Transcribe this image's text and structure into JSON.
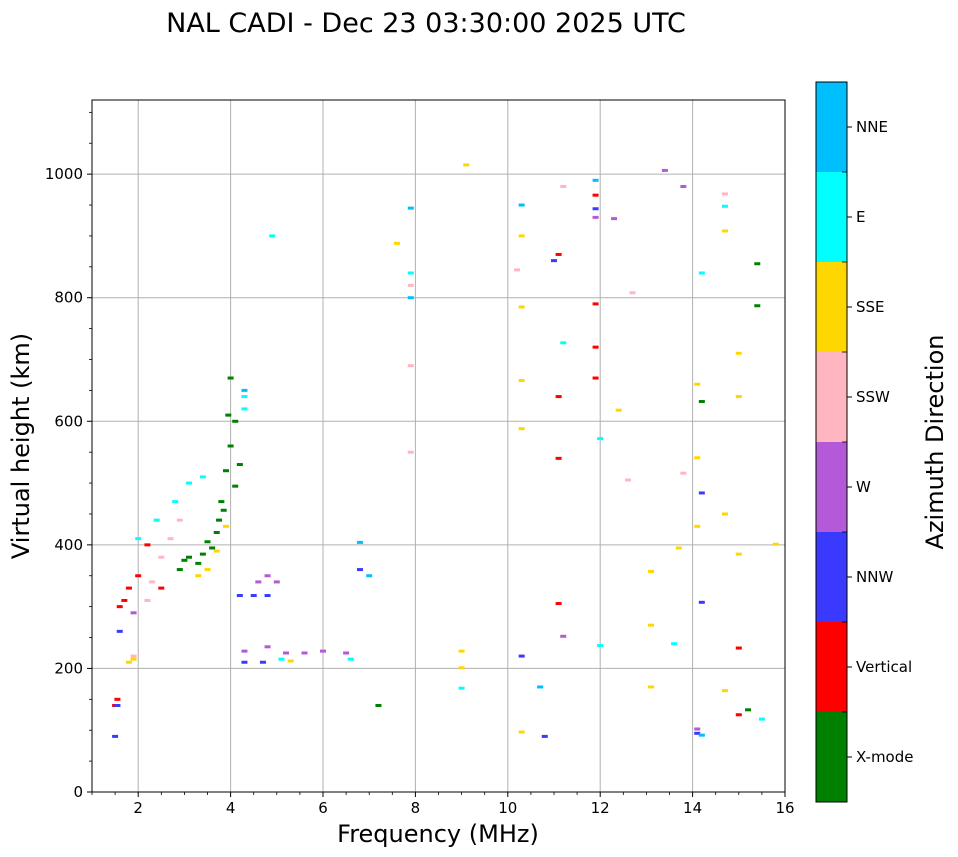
{
  "chart_data": {
    "type": "scatter",
    "title": "NAL CADI - Dec 23 03:30:00 2025 UTC",
    "xlabel": "Frequency (MHz)",
    "ylabel": "Virtual height (km)",
    "xlim": [
      1,
      16
    ],
    "ylim": [
      0,
      1120
    ],
    "xticks": [
      2,
      4,
      6,
      8,
      10,
      12,
      14,
      16
    ],
    "yticks": [
      0,
      200,
      400,
      600,
      800,
      1000
    ],
    "grid": true,
    "colorbar": {
      "label": "Azimuth Direction",
      "categories": [
        {
          "name": "X-mode",
          "color": "#008000"
        },
        {
          "name": "Vertical",
          "color": "#ff0000"
        },
        {
          "name": "NNW",
          "color": "#3a3aff"
        },
        {
          "name": "W",
          "color": "#b45ad8"
        },
        {
          "name": "SSW",
          "color": "#ffb6c1"
        },
        {
          "name": "SSE",
          "color": "#ffd700"
        },
        {
          "name": "E",
          "color": "#00ffff"
        },
        {
          "name": "NNE",
          "color": "#00bfff"
        }
      ]
    },
    "series": [
      {
        "name": "X-mode",
        "points": [
          [
            3.6,
            395
          ],
          [
            3.7,
            420
          ],
          [
            3.8,
            470
          ],
          [
            3.9,
            520
          ],
          [
            4.0,
            560
          ],
          [
            4.1,
            600
          ],
          [
            3.3,
            370
          ],
          [
            3.4,
            385
          ],
          [
            3.5,
            405
          ],
          [
            2.9,
            360
          ],
          [
            3.0,
            375
          ],
          [
            3.1,
            380
          ],
          [
            4.1,
            495
          ],
          [
            4.2,
            530
          ],
          [
            3.95,
            610
          ],
          [
            4.0,
            670
          ],
          [
            15.4,
            855
          ],
          [
            15.4,
            787
          ],
          [
            15.2,
            133
          ],
          [
            14.2,
            632
          ],
          [
            7.2,
            140
          ],
          [
            3.85,
            456
          ],
          [
            3.75,
            440
          ]
        ]
      },
      {
        "name": "Vertical",
        "points": [
          [
            1.5,
            140
          ],
          [
            1.6,
            300
          ],
          [
            1.7,
            310
          ],
          [
            1.8,
            330
          ],
          [
            2.0,
            350
          ],
          [
            2.2,
            400
          ],
          [
            2.5,
            330
          ],
          [
            11.1,
            870
          ],
          [
            11.1,
            640
          ],
          [
            11.1,
            540
          ],
          [
            11.1,
            305
          ],
          [
            11.9,
            966
          ],
          [
            11.9,
            790
          ],
          [
            11.9,
            720
          ],
          [
            11.9,
            670
          ],
          [
            15.0,
            233
          ],
          [
            15.0,
            125
          ],
          [
            1.55,
            150
          ]
        ]
      },
      {
        "name": "NNW",
        "points": [
          [
            1.6,
            260
          ],
          [
            1.5,
            90
          ],
          [
            4.2,
            318
          ],
          [
            4.5,
            318
          ],
          [
            4.8,
            318
          ],
          [
            4.3,
            210
          ],
          [
            4.7,
            210
          ],
          [
            6.8,
            360
          ],
          [
            11.0,
            860
          ],
          [
            11.9,
            944
          ],
          [
            14.2,
            307
          ],
          [
            14.2,
            484
          ],
          [
            14.1,
            95
          ],
          [
            10.8,
            90
          ],
          [
            10.3,
            220
          ],
          [
            1.55,
            140
          ]
        ]
      },
      {
        "name": "W",
        "points": [
          [
            4.6,
            340
          ],
          [
            4.8,
            350
          ],
          [
            5.0,
            340
          ],
          [
            4.3,
            228
          ],
          [
            4.8,
            235
          ],
          [
            5.2,
            225
          ],
          [
            5.6,
            225
          ],
          [
            6.0,
            228
          ],
          [
            6.5,
            225
          ],
          [
            11.9,
            930
          ],
          [
            14.1,
            102
          ],
          [
            12.3,
            928
          ],
          [
            13.4,
            1006
          ],
          [
            13.8,
            980
          ],
          [
            11.2,
            252
          ],
          [
            1.9,
            290
          ]
        ]
      },
      {
        "name": "SSW",
        "points": [
          [
            2.3,
            340
          ],
          [
            2.5,
            380
          ],
          [
            2.7,
            410
          ],
          [
            2.9,
            440
          ],
          [
            2.2,
            310
          ],
          [
            1.9,
            220
          ],
          [
            7.9,
            820
          ],
          [
            7.9,
            690
          ],
          [
            7.9,
            550
          ],
          [
            10.2,
            845
          ],
          [
            11.2,
            980
          ],
          [
            14.7,
            968
          ],
          [
            13.8,
            516
          ],
          [
            12.6,
            505
          ],
          [
            12.7,
            808
          ]
        ]
      },
      {
        "name": "SSE",
        "points": [
          [
            3.5,
            360
          ],
          [
            3.7,
            390
          ],
          [
            3.9,
            430
          ],
          [
            3.3,
            350
          ],
          [
            1.8,
            210
          ],
          [
            1.9,
            215
          ],
          [
            5.3,
            212
          ],
          [
            7.6,
            888
          ],
          [
            9.1,
            1015
          ],
          [
            10.3,
            900
          ],
          [
            10.3,
            785
          ],
          [
            10.3,
            666
          ],
          [
            10.3,
            588
          ],
          [
            12.4,
            618
          ],
          [
            14.1,
            660
          ],
          [
            14.1,
            541
          ],
          [
            14.1,
            430
          ],
          [
            14.7,
            908
          ],
          [
            14.7,
            450
          ],
          [
            15.0,
            710
          ],
          [
            15.0,
            640
          ],
          [
            15.0,
            385
          ],
          [
            14.7,
            164
          ],
          [
            15.8,
            401
          ],
          [
            13.7,
            395
          ],
          [
            13.1,
            357
          ],
          [
            13.1,
            270
          ],
          [
            13.1,
            170
          ],
          [
            9.0,
            228
          ],
          [
            9.0,
            201
          ],
          [
            10.3,
            97
          ]
        ]
      },
      {
        "name": "E",
        "points": [
          [
            2.0,
            410
          ],
          [
            2.4,
            440
          ],
          [
            2.8,
            470
          ],
          [
            3.1,
            500
          ],
          [
            3.4,
            510
          ],
          [
            4.3,
            620
          ],
          [
            4.3,
            640
          ],
          [
            4.9,
            900
          ],
          [
            7.9,
            840
          ],
          [
            11.2,
            727
          ],
          [
            12.0,
            572
          ],
          [
            14.2,
            840
          ],
          [
            14.7,
            948
          ],
          [
            15.5,
            118
          ],
          [
            13.6,
            240
          ],
          [
            12.0,
            237
          ],
          [
            9.0,
            168
          ],
          [
            6.6,
            215
          ],
          [
            5.1,
            215
          ]
        ]
      },
      {
        "name": "NNE",
        "points": [
          [
            4.3,
            650
          ],
          [
            6.8,
            404
          ],
          [
            7.9,
            945
          ],
          [
            7.9,
            800
          ],
          [
            11.9,
            990
          ],
          [
            10.3,
            950
          ],
          [
            14.2,
            92
          ],
          [
            10.7,
            170
          ],
          [
            7.0,
            350
          ]
        ]
      }
    ]
  }
}
